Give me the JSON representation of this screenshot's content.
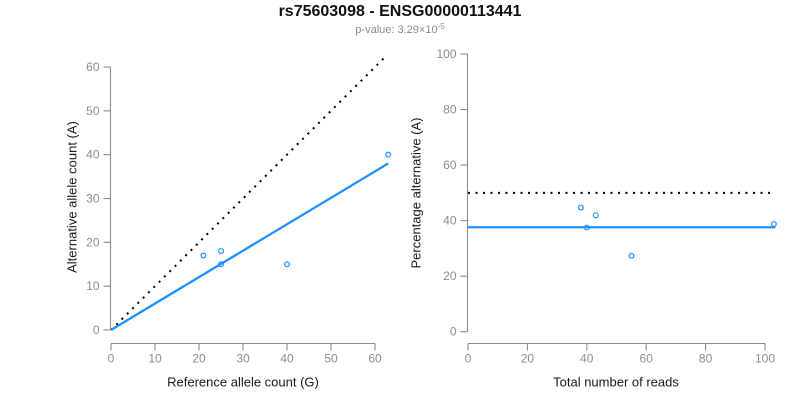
{
  "title": "rs75603098 - ENSG00000113441",
  "subtitle": {
    "prefix": "p-value: 3.29×10",
    "exponent": "-5"
  },
  "colors": {
    "accent_blue": "#1E90FF",
    "dotted_black": "#000000",
    "axis_line": "#8c8c8c",
    "tick_label": "#8e8e8e",
    "axis_title": "#1a1a1a",
    "subtitle_gray": "#8a8a8a"
  },
  "chart_data": [
    {
      "type": "scatter",
      "panel": "left",
      "xlabel": "Reference allele count (G)",
      "ylabel": "Alternative allele count (A)",
      "xlim": [
        0,
        65
      ],
      "ylim": [
        0,
        63
      ],
      "xticks": [
        0,
        10,
        20,
        30,
        40,
        50,
        60
      ],
      "yticks": [
        0,
        10,
        20,
        30,
        40,
        50,
        60
      ],
      "marker": "open-circle",
      "points": [
        [
          21,
          17
        ],
        [
          25,
          18
        ],
        [
          25,
          15
        ],
        [
          40,
          15
        ],
        [
          63,
          40
        ]
      ],
      "lines": [
        {
          "name": "identity-line",
          "style": "dotted",
          "color": "#000000",
          "from": [
            0,
            0
          ],
          "to": [
            62.5,
            62.5
          ]
        },
        {
          "name": "fitted-ratio-line",
          "style": "solid",
          "color": "#1E90FF",
          "from": [
            0,
            0
          ],
          "to": [
            63,
            38
          ]
        }
      ],
      "grid": false,
      "legend": "none"
    },
    {
      "type": "scatter",
      "panel": "right",
      "xlabel": "Total number of reads",
      "ylabel": "Percentage alternative (A)",
      "xlim": [
        0,
        105
      ],
      "ylim": [
        0,
        100
      ],
      "xticks": [
        0,
        20,
        40,
        60,
        80,
        100
      ],
      "yticks": [
        0,
        20,
        40,
        60,
        80,
        100
      ],
      "marker": "open-circle",
      "points": [
        [
          38,
          44.7
        ],
        [
          40,
          37.5
        ],
        [
          43,
          41.9
        ],
        [
          55,
          27.3
        ],
        [
          103,
          38.8
        ]
      ],
      "lines": [
        {
          "name": "fifty-percent-line",
          "style": "dotted",
          "color": "#000000",
          "from": [
            0,
            50
          ],
          "to": [
            103.5,
            50
          ]
        },
        {
          "name": "mean-percentage-line",
          "style": "solid",
          "color": "#1E90FF",
          "from": [
            0,
            37.6
          ],
          "to": [
            103.5,
            37.6
          ]
        }
      ],
      "grid": false,
      "legend": "none"
    }
  ]
}
